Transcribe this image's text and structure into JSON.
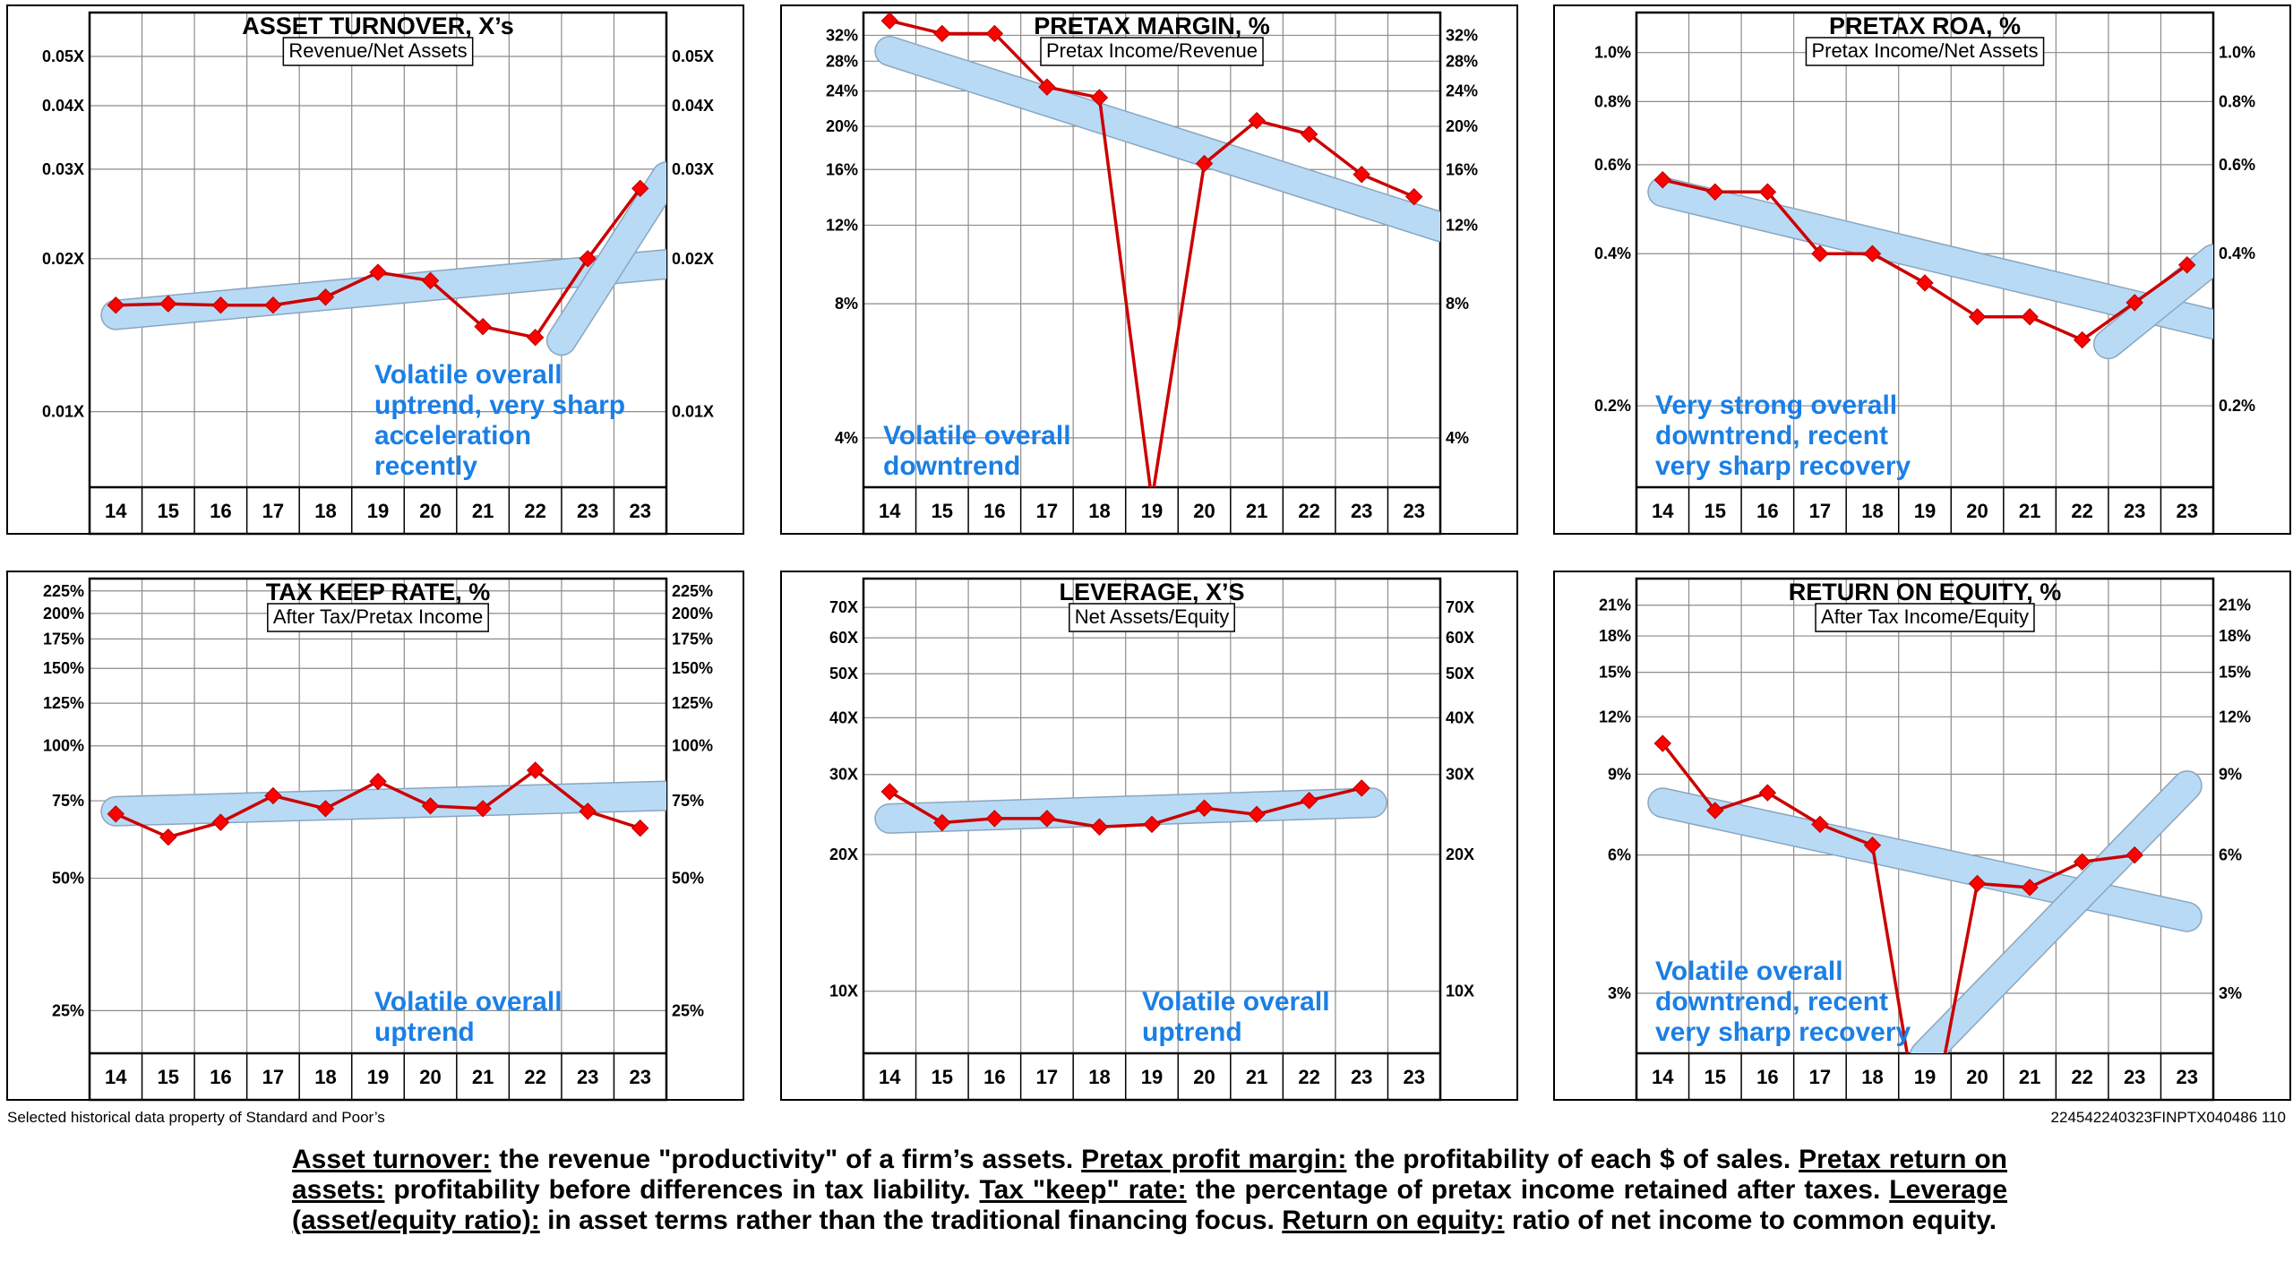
{
  "x_labels": [
    "14",
    "15",
    "16",
    "17",
    "18",
    "19",
    "20",
    "21",
    "22",
    "23",
    "23"
  ],
  "footer": {
    "source": "Selected historical data property of Standard and Poor’s",
    "code": "224542240323FINPTX040486 110"
  },
  "glossary": [
    {
      "term": "Asset turnover:",
      "text": " the revenue \"productivity\" of a firm’s assets. "
    },
    {
      "term": "Pretax profit margin:",
      "text": " the profitability of each $ of sales. "
    },
    {
      "term": "Pretax return on assets:",
      "text": " profitability before differences in tax liability. "
    },
    {
      "term": "Tax \"keep\" rate:",
      "text": " the percentage of pretax income retained after taxes. "
    },
    {
      "term": "Leverage (asset/equity ratio):",
      "text": " in asset terms rather than the traditional financing focus. "
    },
    {
      "term": "Return on equity:",
      "text": " ratio of net income to common equity."
    }
  ],
  "colors": {
    "line": "#cc0000",
    "marker": "#ff0000",
    "trend": "#b8daf5",
    "trend_edge": "#8aa6bf",
    "annotation": "#1a7fe6",
    "grid": "#8c8c8c"
  },
  "chart_data": [
    {
      "type": "line",
      "title": "ASSET TURNOVER, X’s",
      "subtitle": "Revenue/Net Assets",
      "scale": "log",
      "ylim": [
        0.0071,
        0.061
      ],
      "yticks": [
        0.01,
        0.02,
        0.03,
        0.04,
        0.05
      ],
      "ytick_labels": [
        "0.01X",
        "0.02X",
        "0.03X",
        "0.04X",
        "0.05X"
      ],
      "values": [
        0.0162,
        0.0163,
        0.0162,
        0.0162,
        0.0168,
        0.0188,
        0.0181,
        0.0147,
        0.014,
        0.02,
        0.0275
      ],
      "trendlines": [
        {
          "from": [
            0,
            0.0155
          ],
          "to": [
            10.5,
            0.0195
          ]
        },
        {
          "from": [
            8.5,
            0.0138
          ],
          "to": [
            10.5,
            0.029
          ]
        }
      ],
      "annotation": [
        "Volatile overall",
        "uptrend,  very sharp",
        "acceleration",
        "recently"
      ]
    },
    {
      "type": "line",
      "title": "PRETAX MARGIN, %",
      "subtitle": "Pretax Income/Revenue",
      "scale": "log",
      "ylim": [
        3.1,
        36
      ],
      "yticks": [
        4,
        8,
        12,
        16,
        20,
        24,
        28,
        32
      ],
      "ytick_labels": [
        "4%",
        "8%",
        "12%",
        "16%",
        "20%",
        "24%",
        "28%",
        "32%"
      ],
      "values": [
        34.5,
        32.3,
        32.3,
        24.5,
        23.2,
        2.9,
        16.5,
        20.6,
        19.2,
        15.6,
        13.9
      ],
      "trendlines": [
        {
          "from": [
            0,
            29.5
          ],
          "to": [
            10.5,
            11.9
          ]
        }
      ],
      "annotation": [
        "Volatile overall",
        "downtrend"
      ]
    },
    {
      "type": "line",
      "title": "PRETAX ROA, %",
      "subtitle": "Pretax Income/Net Assets",
      "scale": "log",
      "ylim": [
        0.138,
        1.2
      ],
      "yticks": [
        0.2,
        0.4,
        0.6,
        0.8,
        1.0
      ],
      "ytick_labels": [
        "0.2%",
        "0.4%",
        "0.6%",
        "0.8%",
        "1.0%"
      ],
      "values": [
        0.56,
        0.53,
        0.53,
        0.4,
        0.4,
        0.35,
        0.3,
        0.3,
        0.27,
        0.32,
        0.38
      ],
      "trendlines": [
        {
          "from": [
            0,
            0.53
          ],
          "to": [
            10.5,
            0.29
          ]
        },
        {
          "from": [
            8.5,
            0.265
          ],
          "to": [
            10.5,
            0.39
          ]
        }
      ],
      "annotation": [
        "Very strong overall",
        "downtrend,  recent",
        "very sharp recovery"
      ]
    },
    {
      "type": "line",
      "title": "TAX KEEP RATE, %",
      "subtitle": "After Tax/Pretax Income",
      "scale": "log",
      "ylim": [
        20,
        240
      ],
      "yticks": [
        25,
        50,
        75,
        100,
        125,
        150,
        175,
        200,
        225
      ],
      "ytick_labels": [
        "25%",
        "50%",
        "75%",
        "100%",
        "125%",
        "150%",
        "175%",
        "200%",
        "225%"
      ],
      "values": [
        70,
        62,
        67,
        77,
        72,
        83,
        73,
        72,
        88,
        71,
        65
      ],
      "trendlines": [
        {
          "from": [
            0,
            71
          ],
          "to": [
            10.5,
            77
          ]
        }
      ],
      "annotation": [
        "Volatile overall",
        "uptrend"
      ]
    },
    {
      "type": "line",
      "title": "LEVERAGE, X’S",
      "subtitle": "Net Assets/Equity",
      "scale": "log",
      "ylim": [
        7.3,
        81
      ],
      "yticks": [
        10,
        20,
        30,
        40,
        50,
        60,
        70
      ],
      "ytick_labels": [
        "10X",
        "20X",
        "30X",
        "40X",
        "50X",
        "60X",
        "70X"
      ],
      "values": [
        27.5,
        23.5,
        24,
        24,
        23,
        23.3,
        25.3,
        24.5,
        26.3,
        28,
        null
      ],
      "trendlines": [
        {
          "from": [
            0,
            24
          ],
          "to": [
            9.2,
            26
          ]
        }
      ],
      "annotation": [
        "Volatile overall",
        "uptrend"
      ]
    },
    {
      "type": "line",
      "title": "RETURN ON EQUITY, %",
      "subtitle": "After Tax Income/Equity",
      "scale": "log",
      "ylim": [
        2.22,
        24
      ],
      "yticks": [
        3,
        6,
        9,
        12,
        15,
        18,
        21
      ],
      "ytick_labels": [
        "3%",
        "6%",
        "9%",
        "12%",
        "15%",
        "18%",
        "21%"
      ],
      "values": [
        10.5,
        7.5,
        8.2,
        7.0,
        6.3,
        1.3,
        5.2,
        5.1,
        5.8,
        6.0,
        null
      ],
      "trendlines": [
        {
          "from": [
            0,
            7.8
          ],
          "to": [
            10,
            4.4
          ]
        },
        {
          "from": [
            5,
            2.2
          ],
          "to": [
            10,
            8.5
          ]
        }
      ],
      "annotation": [
        "Volatile overall",
        "downtrend,  recent",
        "very sharp recovery"
      ]
    }
  ]
}
